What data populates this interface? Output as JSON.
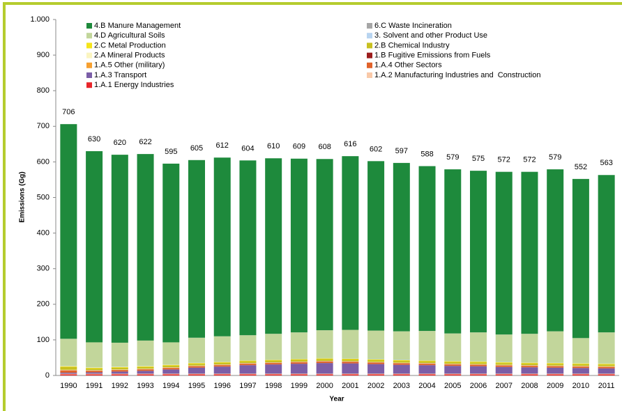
{
  "chart_data": {
    "type": "stacked_bar",
    "x_label": "Year",
    "y_label": "Emissions (Gg)",
    "categories": [
      "1990",
      "1991",
      "1992",
      "1993",
      "1994",
      "1995",
      "1996",
      "1997",
      "1998",
      "1999",
      "2000",
      "2001",
      "2002",
      "2003",
      "2004",
      "2005",
      "2006",
      "2007",
      "2008",
      "2009",
      "2010",
      "2011"
    ],
    "totals": [
      706,
      630,
      620,
      622,
      595,
      605,
      612,
      604,
      610,
      609,
      608,
      616,
      602,
      597,
      588,
      579,
      575,
      572,
      572,
      579,
      552,
      563
    ],
    "ylim": [
      0,
      1000
    ],
    "yticks": [
      0,
      100,
      200,
      300,
      400,
      500,
      600,
      700,
      800,
      900,
      {
        "value": 1000,
        "label": "1.000"
      }
    ],
    "grid": false,
    "series": [
      {
        "name": "1.A.1 Energy Industries",
        "color": "#e8252a",
        "values": [
          3,
          3,
          3,
          3,
          3,
          3,
          3,
          3,
          3,
          3,
          3,
          3,
          3,
          3,
          3,
          3,
          3,
          3,
          3,
          3,
          3,
          3
        ]
      },
      {
        "name": "1.A.2 Manufacturing Industries and  Construction",
        "color": "#f9c9a8",
        "values": [
          2,
          2,
          2,
          2,
          2,
          2,
          2,
          2,
          2,
          2,
          2,
          2,
          2,
          2,
          2,
          2,
          2,
          2,
          2,
          2,
          2,
          2
        ]
      },
      {
        "name": "1.A.3 Transport",
        "color": "#7b5ea7",
        "values": [
          3,
          4,
          6,
          8,
          12,
          17,
          20,
          24,
          26,
          28,
          30,
          29,
          27,
          25,
          24,
          22,
          21,
          19,
          18,
          17,
          16,
          15
        ]
      },
      {
        "name": "1.A.4 Other Sectors",
        "color": "#e0622a",
        "values": [
          6,
          4,
          4,
          4,
          4,
          4,
          4,
          4,
          4,
          4,
          4,
          4,
          4,
          4,
          4,
          4,
          4,
          4,
          4,
          4,
          4,
          4
        ]
      },
      {
        "name": "1.A.5 Other (military)",
        "color": "#f6a030",
        "values": [
          0.5,
          0.5,
          0.5,
          0.5,
          0.5,
          0.5,
          0.5,
          0.5,
          0.5,
          0.5,
          0.5,
          0.5,
          0.5,
          0.5,
          0.5,
          0.5,
          0.5,
          0.5,
          0.5,
          0.5,
          0.5,
          0.5
        ]
      },
      {
        "name": "1.B Fugitive Emissions from Fuels",
        "color": "#9b1c1c",
        "values": [
          0.5,
          0.5,
          0.5,
          0.5,
          0.5,
          0.5,
          0.5,
          0.5,
          0.5,
          0.5,
          0.5,
          0.5,
          0.5,
          0.5,
          0.5,
          0.5,
          0.5,
          0.5,
          0.5,
          0.5,
          0.5,
          0.5
        ]
      },
      {
        "name": "2.A Mineral Products",
        "color": "#fbf5c0",
        "values": [
          1,
          1,
          1,
          1,
          1,
          1,
          1,
          1,
          1,
          1,
          1,
          1,
          1,
          1,
          1,
          1,
          1,
          1,
          1,
          1,
          1,
          1
        ]
      },
      {
        "name": "2.B Chemical Industry",
        "color": "#c8c020",
        "values": [
          8,
          5,
          5,
          5,
          5,
          5,
          5,
          5,
          5,
          5,
          5,
          5,
          5,
          5,
          5,
          5,
          5,
          5,
          5,
          5,
          5,
          5
        ]
      },
      {
        "name": "2.C Metal Production",
        "color": "#f5e41a",
        "values": [
          2,
          2,
          2,
          2,
          2,
          2,
          2,
          2,
          2,
          2,
          2,
          2,
          2,
          2,
          2,
          2,
          2,
          2,
          2,
          2,
          2,
          2
        ]
      },
      {
        "name": "3. Solvent and other Product Use",
        "color": "#b8d4f0",
        "values": [
          1,
          1,
          1,
          1,
          1,
          1,
          1,
          1,
          1,
          1,
          1,
          1,
          1,
          1,
          1,
          1,
          1,
          1,
          1,
          1,
          1,
          1
        ]
      },
      {
        "name": "4.D Agricultural Soils",
        "color": "#c2d69b",
        "values": [
          76,
          70,
          67,
          71,
          62,
          70,
          71,
          70,
          72,
          74,
          78,
          80,
          80,
          80,
          82,
          77,
          81,
          77,
          80,
          88,
          70,
          87
        ]
      },
      {
        "name": "6.C Waste Incineration",
        "color": "#a6a6a6",
        "values": [
          0.1,
          0.1,
          0.1,
          0.1,
          0.1,
          0.1,
          0.1,
          0.1,
          0.1,
          0.1,
          0.1,
          0.1,
          0.1,
          0.1,
          0.1,
          0.1,
          0.1,
          0.1,
          0.1,
          0.1,
          0.1,
          0.1
        ]
      },
      {
        "name": "4.B Manure Management",
        "color": "#1e8a3c",
        "values": [
          603,
          537,
          528,
          524,
          502,
          499,
          502,
          491,
          493,
          488,
          481,
          488,
          476,
          473,
          463,
          461,
          454,
          457,
          455,
          455,
          447,
          442
        ]
      }
    ]
  }
}
